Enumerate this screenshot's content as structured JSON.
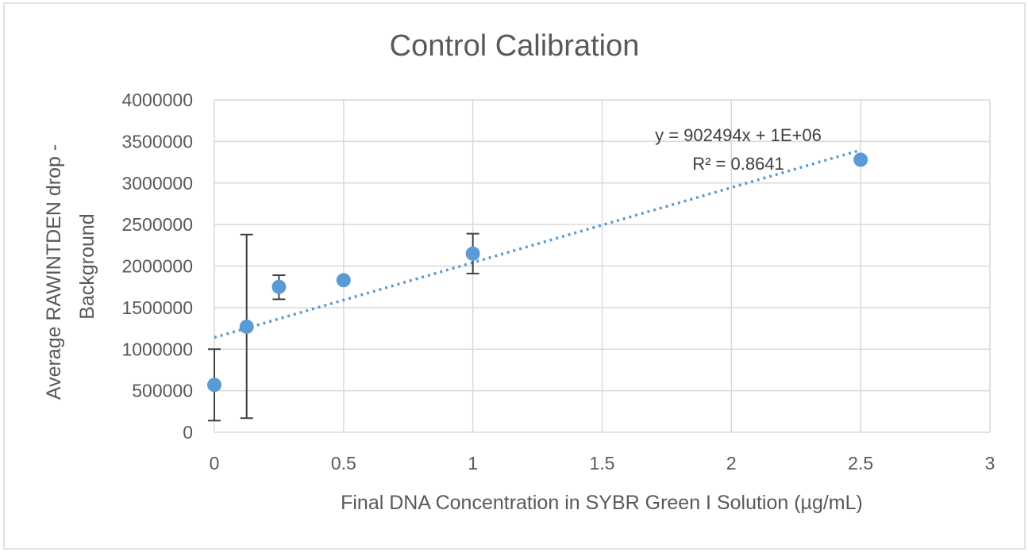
{
  "chart_data": {
    "type": "scatter",
    "title": "Control Calibration",
    "xlabel": "Final DNA Concentration in SYBR Green I Solution (µg/mL)",
    "ylabel_lines": [
      "Average RAWINTDEN drop -",
      "Background"
    ],
    "xlim": [
      0,
      3
    ],
    "ylim": [
      0,
      4000000
    ],
    "x_ticks": [
      0,
      0.5,
      1,
      1.5,
      2,
      2.5,
      3
    ],
    "x_tick_labels": [
      "0",
      "0.5",
      "1",
      "1.5",
      "2",
      "2.5",
      "3"
    ],
    "y_ticks": [
      0,
      500000,
      1000000,
      1500000,
      2000000,
      2500000,
      3000000,
      3500000,
      4000000
    ],
    "y_tick_labels": [
      "0",
      "500000",
      "1000000",
      "1500000",
      "2000000",
      "2500000",
      "3000000",
      "3500000",
      "4000000"
    ],
    "grid": true,
    "series": [
      {
        "color": "#5b9bd5",
        "points": [
          {
            "x": 0,
            "y": 570000,
            "err_low": 140000,
            "err_high": 1000000
          },
          {
            "x": 0.125,
            "y": 1270000,
            "err_low": 170000,
            "err_high": 2380000
          },
          {
            "x": 0.25,
            "y": 1750000,
            "err_low": 1600000,
            "err_high": 1890000
          },
          {
            "x": 0.5,
            "y": 1830000,
            "err_low": 1830000,
            "err_high": 1830000
          },
          {
            "x": 1,
            "y": 2150000,
            "err_low": 1910000,
            "err_high": 2390000
          },
          {
            "x": 2.5,
            "y": 3280000,
            "err_low": 3280000,
            "err_high": 3280000
          }
        ]
      }
    ],
    "trendline": {
      "slope": 902494,
      "intercept": 1140000,
      "x_range": [
        0,
        2.5
      ],
      "style": "dotted",
      "color": "#5b9bd5",
      "equation": "y = 902494x + 1E+06",
      "r_squared": "R² = 0.8641"
    }
  }
}
